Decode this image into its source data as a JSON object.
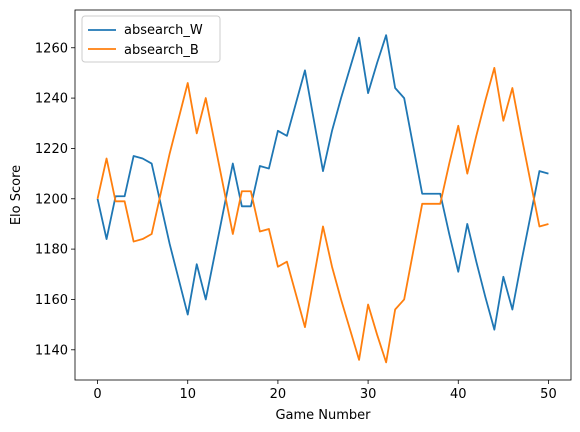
{
  "chart_data": {
    "type": "line",
    "title": "",
    "xlabel": "Game Number",
    "ylabel": "Elo Score",
    "xlim": [
      -2.5,
      52.5
    ],
    "ylim": [
      1128,
      1275
    ],
    "xticks": [
      0,
      10,
      20,
      30,
      40,
      50
    ],
    "yticks": [
      1140,
      1160,
      1180,
      1200,
      1220,
      1240,
      1260
    ],
    "grid": false,
    "legend": "upper left",
    "x": [
      0,
      1,
      2,
      3,
      4,
      5,
      6,
      7,
      8,
      9,
      10,
      11,
      12,
      13,
      14,
      15,
      16,
      17,
      18,
      19,
      20,
      21,
      22,
      23,
      24,
      25,
      26,
      27,
      28,
      29,
      30,
      31,
      32,
      33,
      34,
      35,
      36,
      37,
      38,
      39,
      40,
      41,
      42,
      43,
      44,
      45,
      46,
      47,
      48,
      49,
      50
    ],
    "series": [
      {
        "name": "absearch_W",
        "color": "#1f77b4",
        "values": [
          1200,
          1184,
          1201,
          1201,
          1217,
          1216,
          1214,
          1198,
          1182,
          1168,
          1154,
          1174,
          1160,
          1178,
          1196,
          1214,
          1197,
          1197,
          1213,
          1212,
          1227,
          1225,
          1238,
          1251,
          1231,
          1211,
          1227,
          1240,
          1252,
          1264,
          1242,
          1254,
          1265,
          1244,
          1240,
          1221,
          1202,
          1202,
          1202,
          1186,
          1171,
          1190,
          1175,
          1161,
          1148,
          1169,
          1156,
          1175,
          1193,
          1211,
          1210
        ]
      },
      {
        "name": "absearch_B",
        "color": "#ff7f0e",
        "values": [
          1200,
          1216,
          1199,
          1199,
          1183,
          1184,
          1186,
          1202,
          1218,
          1232,
          1246,
          1226,
          1240,
          1222,
          1204,
          1186,
          1203,
          1203,
          1187,
          1188,
          1173,
          1175,
          1162,
          1149,
          1169,
          1189,
          1173,
          1160,
          1148,
          1136,
          1158,
          1146,
          1135,
          1156,
          1160,
          1179,
          1198,
          1198,
          1198,
          1214,
          1229,
          1210,
          1225,
          1239,
          1252,
          1231,
          1244,
          1225,
          1207,
          1189,
          1190
        ]
      }
    ]
  }
}
